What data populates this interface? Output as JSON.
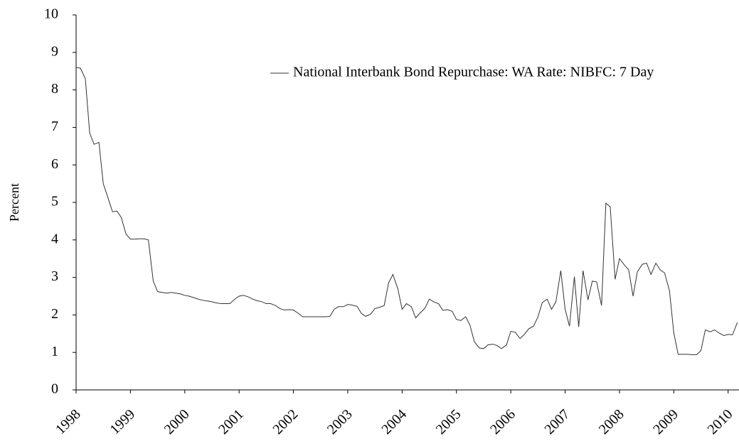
{
  "chart_data": {
    "type": "line",
    "y_label": "Percent",
    "legend": "upper right",
    "xlim": [
      1998,
      2010.2
    ],
    "xticks": [
      1998,
      1999,
      2000,
      2001,
      2002,
      2003,
      2004,
      2005,
      2006,
      2007,
      2008,
      2009,
      2010
    ],
    "ylim": [
      0,
      10
    ],
    "yticks": [
      0,
      1,
      2,
      3,
      4,
      5,
      6,
      7,
      8,
      9,
      10
    ],
    "grid": false,
    "x": [
      1998,
      1998.08,
      1998.17,
      1998.25,
      1998.33,
      1998.42,
      1998.5,
      1998.58,
      1998.67,
      1998.75,
      1998.83,
      1998.92,
      1999,
      1999.08,
      1999.17,
      1999.25,
      1999.33,
      1999.42,
      1999.5,
      1999.58,
      1999.67,
      1999.75,
      1999.83,
      1999.92,
      2000,
      2000.08,
      2000.17,
      2000.25,
      2000.33,
      2000.42,
      2000.5,
      2000.58,
      2000.67,
      2000.75,
      2000.83,
      2000.92,
      2001,
      2001.08,
      2001.17,
      2001.25,
      2001.33,
      2001.42,
      2001.5,
      2001.58,
      2001.67,
      2001.75,
      2001.83,
      2001.92,
      2002,
      2002.08,
      2002.17,
      2002.25,
      2002.33,
      2002.42,
      2002.5,
      2002.58,
      2002.67,
      2002.75,
      2002.83,
      2002.92,
      2003,
      2003.08,
      2003.17,
      2003.25,
      2003.33,
      2003.42,
      2003.5,
      2003.58,
      2003.67,
      2003.75,
      2003.83,
      2003.92,
      2004,
      2004.08,
      2004.17,
      2004.25,
      2004.33,
      2004.42,
      2004.5,
      2004.58,
      2004.67,
      2004.75,
      2004.83,
      2004.92,
      2005,
      2005.08,
      2005.17,
      2005.25,
      2005.33,
      2005.42,
      2005.5,
      2005.58,
      2005.67,
      2005.75,
      2005.83,
      2005.92,
      2006,
      2006.08,
      2006.17,
      2006.25,
      2006.33,
      2006.42,
      2006.5,
      2006.58,
      2006.67,
      2006.75,
      2006.83,
      2006.92,
      2007,
      2007.08,
      2007.17,
      2007.25,
      2007.33,
      2007.42,
      2007.5,
      2007.58,
      2007.67,
      2007.75,
      2007.83,
      2007.92,
      2008,
      2008.08,
      2008.17,
      2008.25,
      2008.33,
      2008.42,
      2008.5,
      2008.58,
      2008.67,
      2008.75,
      2008.83,
      2008.92,
      2009,
      2009.08,
      2009.17,
      2009.25,
      2009.33,
      2009.42,
      2009.5,
      2009.58,
      2009.67,
      2009.75,
      2009.83,
      2009.92,
      2010,
      2010.08,
      2010.17
    ],
    "series": [
      {
        "name": "National Interbank Bond Repurchase: WA Rate: NIBFC: 7 Day",
        "color": "#333333",
        "values": [
          8.6,
          8.58,
          8.3,
          6.85,
          6.55,
          6.6,
          5.5,
          5.15,
          4.75,
          4.77,
          4.6,
          4.15,
          4.02,
          4.02,
          4.03,
          4.03,
          4.0,
          2.9,
          2.62,
          2.6,
          2.58,
          2.6,
          2.58,
          2.56,
          2.52,
          2.5,
          2.46,
          2.42,
          2.39,
          2.37,
          2.35,
          2.32,
          2.3,
          2.3,
          2.3,
          2.42,
          2.5,
          2.52,
          2.48,
          2.42,
          2.38,
          2.35,
          2.3,
          2.3,
          2.25,
          2.17,
          2.13,
          2.14,
          2.13,
          2.05,
          1.95,
          1.95,
          1.95,
          1.95,
          1.95,
          1.95,
          1.96,
          2.15,
          2.22,
          2.22,
          2.28,
          2.26,
          2.23,
          2.04,
          1.96,
          2.02,
          2.17,
          2.2,
          2.25,
          2.85,
          3.08,
          2.7,
          2.15,
          2.3,
          2.22,
          1.92,
          2.05,
          2.18,
          2.42,
          2.35,
          2.3,
          2.12,
          2.14,
          2.1,
          1.88,
          1.85,
          1.95,
          1.72,
          1.28,
          1.12,
          1.1,
          1.2,
          1.22,
          1.18,
          1.1,
          1.2,
          1.56,
          1.54,
          1.37,
          1.48,
          1.63,
          1.7,
          1.95,
          2.33,
          2.42,
          2.15,
          2.35,
          3.18,
          2.15,
          1.7,
          3.02,
          1.68,
          3.18,
          2.4,
          2.9,
          2.88,
          2.25,
          4.98,
          4.88,
          2.95,
          3.5,
          3.35,
          3.2,
          2.5,
          3.15,
          3.35,
          3.38,
          3.08,
          3.38,
          3.2,
          3.12,
          2.65,
          1.52,
          0.95,
          0.95,
          0.95,
          0.94,
          0.94,
          1.05,
          1.6,
          1.55,
          1.6,
          1.52,
          1.45,
          1.48,
          1.47,
          1.8
        ]
      }
    ]
  }
}
